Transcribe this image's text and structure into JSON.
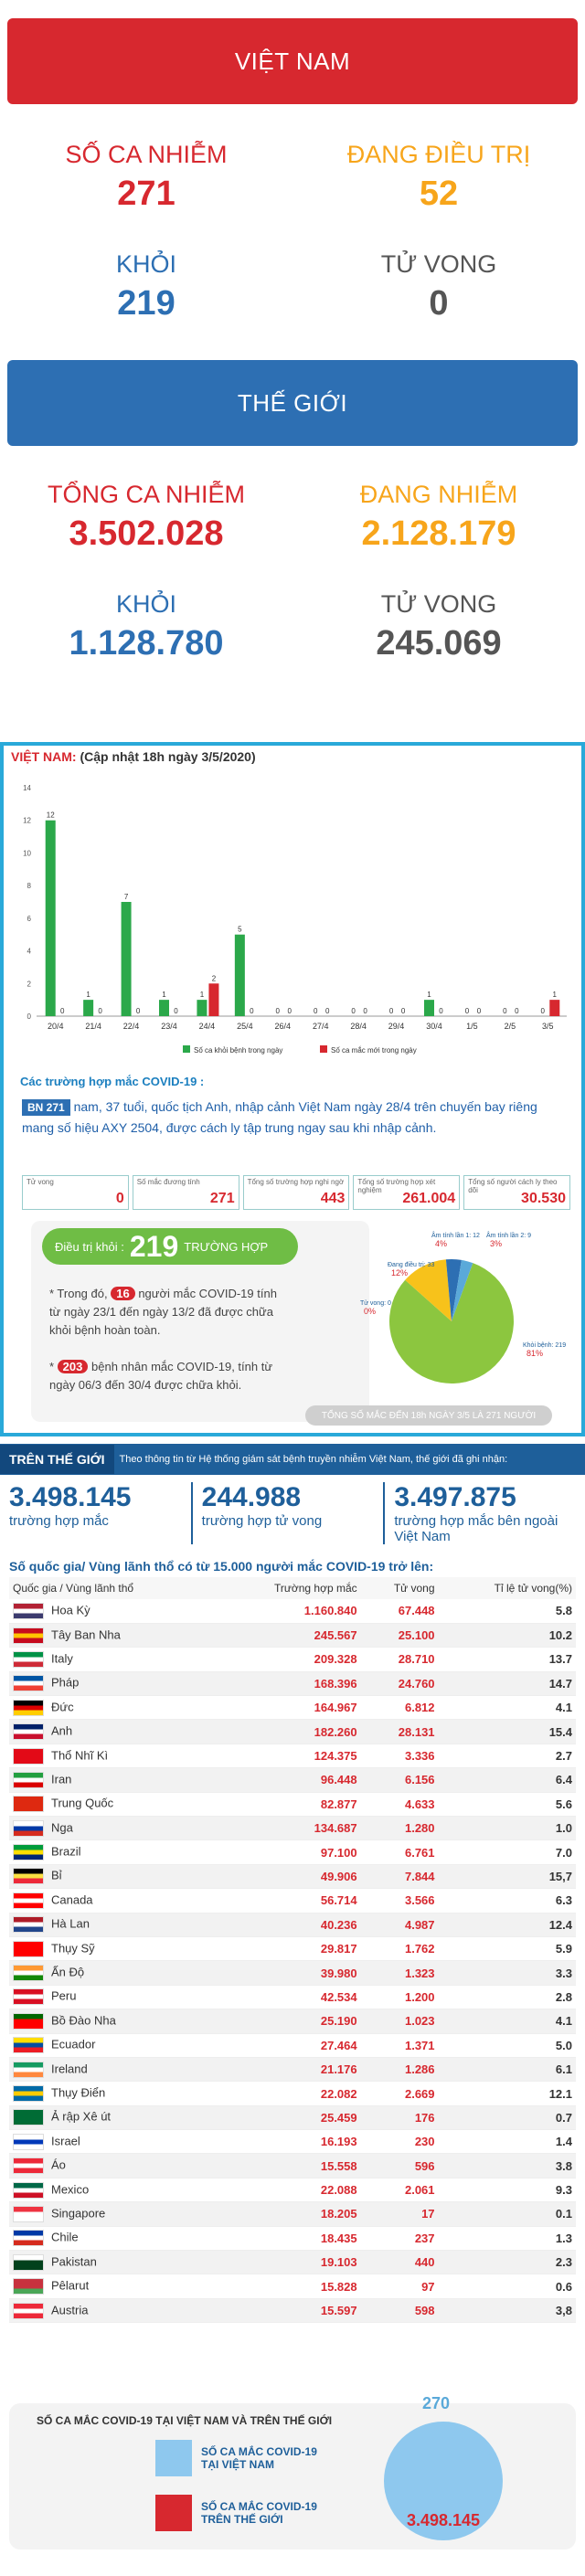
{
  "vietnam": {
    "banner": "VIỆT NAM",
    "infected_label": "SỐ CA NHIỄM",
    "infected": "271",
    "treating_label": "ĐANG ĐIỀU TRỊ",
    "treating": "52",
    "recovered_label": "KHỎI",
    "recovered": "219",
    "deaths_label": "TỬ VONG",
    "deaths": "0"
  },
  "world": {
    "banner": "THẾ GIỚI",
    "infected_label": "TỔNG CA NHIỄM",
    "infected": "3.502.028",
    "active_label": "ĐANG NHIỄM",
    "active": "2.128.179",
    "recovered_label": "KHỎI",
    "recovered": "1.128.780",
    "deaths_label": "TỬ VONG",
    "deaths": "245.069"
  },
  "vn_chart": {
    "title": "VIỆT NAM:",
    "subtitle": "(Cập nhật 18h ngày 3/5/2020)",
    "legend_recovered": "Số ca khỏi bệnh trong ngày",
    "legend_new": "Số ca mắc mới trong ngày"
  },
  "chart_data": {
    "type": "bar",
    "categories": [
      "20/4",
      "21/4",
      "22/4",
      "23/4",
      "24/4",
      "25/4",
      "26/4",
      "27/4",
      "28/4",
      "29/4",
      "30/4",
      "1/5",
      "2/5",
      "3/5"
    ],
    "series": [
      {
        "name": "Số ca khỏi bệnh trong ngày",
        "values": [
          12,
          1,
          7,
          1,
          1,
          5,
          0,
          0,
          0,
          0,
          1,
          0,
          0,
          0
        ],
        "color": "#2ba84a"
      },
      {
        "name": "Số ca mắc mới trong ngày",
        "values": [
          0,
          0,
          0,
          0,
          2,
          0,
          0,
          0,
          0,
          0,
          0,
          0,
          0,
          1
        ],
        "color": "#d7282f"
      }
    ],
    "ylim": [
      0,
      14
    ],
    "yticks": [
      "0",
      "2",
      "4",
      "6",
      "8",
      "10",
      "12",
      "14"
    ]
  },
  "case_info": {
    "title": "Các trường hợp mắc COVID-19 :",
    "bn_tag": "BN 271",
    "bn_text": "nam, 37 tuổi, quốc tịch Anh, nhập cảnh Việt Nam ngày 28/4 trên chuyến bay riêng mang số hiệu AXY 2504, được cách ly tập trung ngay sau khi nhập cảnh."
  },
  "mini_stats": [
    {
      "label": "Tử vong",
      "value": "0"
    },
    {
      "label": "Số mắc đương tính",
      "value": "271"
    },
    {
      "label": "Tổng số trường hợp nghi ngờ",
      "value": "443"
    },
    {
      "label": "Tổng số trường hợp xét nghiệm",
      "value": "261.004"
    },
    {
      "label": "Tổng số người cách ly theo dõi",
      "value": "30.530"
    }
  ],
  "recovery": {
    "pill_label": "Điều trị khỏi :",
    "pill_value": "219",
    "pill_unit": "TRƯỜNG HỢP",
    "text1_pre": "* Trong đó,",
    "text1_badge": "16",
    "text1_post": "người mắc COVID-19 tính từ ngày 23/1 đến ngày 13/2 đã được chữa khỏi bệnh hoàn toàn.",
    "text2_badge": "203",
    "text2_post": "bệnh nhân  mắc COVID-19, tính từ ngày 06/3 đến 30/4 được chữa khỏi.",
    "total_strip": "TỔNG SỐ MẮC ĐẾN 18h NGÀY 3/5 LÀ 271 NGƯỜI"
  },
  "pie": {
    "slices": [
      {
        "label": "Khỏi bệnh: 219",
        "pct": "81%",
        "value": 81,
        "color": "#8cc63f"
      },
      {
        "label": "Đang điều trị: 33",
        "pct": "12%",
        "value": 12,
        "color": "#f7c21b"
      },
      {
        "label": "Âm tính lần 1: 12",
        "pct": "4%",
        "value": 4,
        "color": "#2d6fb3"
      },
      {
        "label": "Âm tính lần 2: 9",
        "pct": "3%",
        "value": 3,
        "color": "#5aa9d9"
      },
      {
        "label": "Tử vong: 0",
        "pct": "0%",
        "value": 0,
        "color": "#d7282f"
      }
    ]
  },
  "world_table": {
    "tag": "TRÊN THẾ GIỚI",
    "desc": "Theo thông tin từ Hệ thống giám sát bệnh truyền nhiễm Việt Nam, thế giới đã ghi nhận:",
    "big": [
      {
        "value": "3.498.145",
        "caption": "trường hợp mắc"
      },
      {
        "value": "244.988",
        "caption": "trường hợp tử vong"
      },
      {
        "value": "3.497.875",
        "caption": "trường hợp mắc bên ngoài Việt Nam"
      }
    ],
    "title": "Số quốc gia/ Vùng lãnh thổ có từ 15.000 người  mắc COVID-19 trở lên:",
    "headers": [
      "Quốc gia / Vùng lãnh thổ",
      "Trường hợp mắc",
      "Tử vong",
      "Tỉ lệ tử vong(%)"
    ],
    "rows": [
      {
        "name": "Hoa Kỳ",
        "cases": "1.160.840",
        "deaths": "67.448",
        "rate": "5.8",
        "flag": [
          "#b22234",
          "#ffffff",
          "#3c3b6e"
        ]
      },
      {
        "name": "Tây Ban Nha",
        "cases": "245.567",
        "deaths": "25.100",
        "rate": "10.2",
        "flag": [
          "#c60b1e",
          "#ffc400",
          "#c60b1e"
        ]
      },
      {
        "name": "Italy",
        "cases": "209.328",
        "deaths": "28.710",
        "rate": "13.7",
        "flag": [
          "#009246",
          "#ffffff",
          "#ce2b37"
        ]
      },
      {
        "name": "Pháp",
        "cases": "168.396",
        "deaths": "24.760",
        "rate": "14.7",
        "flag": [
          "#0055a4",
          "#ffffff",
          "#ef4135"
        ]
      },
      {
        "name": "Đức",
        "cases": "164.967",
        "deaths": "6.812",
        "rate": "4.1",
        "flag": [
          "#000000",
          "#dd0000",
          "#ffce00"
        ]
      },
      {
        "name": "Anh",
        "cases": "182.260",
        "deaths": "28.131",
        "rate": "15.4",
        "flag": [
          "#012169",
          "#ffffff",
          "#c8102e"
        ]
      },
      {
        "name": "Thổ Nhĩ Kì",
        "cases": "124.375",
        "deaths": "3.336",
        "rate": "2.7",
        "flag": [
          "#e30a17",
          "#e30a17",
          "#e30a17"
        ]
      },
      {
        "name": "Iran",
        "cases": "96.448",
        "deaths": "6.156",
        "rate": "6.4",
        "flag": [
          "#239f40",
          "#ffffff",
          "#da0000"
        ]
      },
      {
        "name": "Trung Quốc",
        "cases": "82.877",
        "deaths": "4.633",
        "rate": "5.6",
        "flag": [
          "#de2910",
          "#de2910",
          "#de2910"
        ]
      },
      {
        "name": "Nga",
        "cases": "134.687",
        "deaths": "1.280",
        "rate": "1.0",
        "flag": [
          "#ffffff",
          "#0039a6",
          "#d52b1e"
        ]
      },
      {
        "name": "Brazil",
        "cases": "97.100",
        "deaths": "6.761",
        "rate": "7.0",
        "flag": [
          "#009c3b",
          "#ffdf00",
          "#002776"
        ]
      },
      {
        "name": "Bỉ",
        "cases": "49.906",
        "deaths": "7.844",
        "rate": "15,7",
        "flag": [
          "#000000",
          "#fae042",
          "#ed2939"
        ]
      },
      {
        "name": "Canada",
        "cases": "56.714",
        "deaths": "3.566",
        "rate": "6.3",
        "flag": [
          "#ff0000",
          "#ffffff",
          "#ff0000"
        ]
      },
      {
        "name": "Hà Lan",
        "cases": "40.236",
        "deaths": "4.987",
        "rate": "12.4",
        "flag": [
          "#ae1c28",
          "#ffffff",
          "#21468b"
        ]
      },
      {
        "name": "Thụy Sỹ",
        "cases": "29.817",
        "deaths": "1.762",
        "rate": "5.9",
        "flag": [
          "#ff0000",
          "#ff0000",
          "#ff0000"
        ]
      },
      {
        "name": "Ấn Độ",
        "cases": "39.980",
        "deaths": "1.323",
        "rate": "3.3",
        "flag": [
          "#ff9933",
          "#ffffff",
          "#138808"
        ]
      },
      {
        "name": "Peru",
        "cases": "42.534",
        "deaths": "1.200",
        "rate": "2.8",
        "flag": [
          "#d91023",
          "#ffffff",
          "#d91023"
        ]
      },
      {
        "name": "Bồ Đào Nha",
        "cases": "25.190",
        "deaths": "1.023",
        "rate": "4.1",
        "flag": [
          "#006600",
          "#ff0000",
          "#ff0000"
        ]
      },
      {
        "name": "Ecuador",
        "cases": "27.464",
        "deaths": "1.371",
        "rate": "5.0",
        "flag": [
          "#ffdd00",
          "#034ea2",
          "#ed1c24"
        ]
      },
      {
        "name": "Ireland",
        "cases": "21.176",
        "deaths": "1.286",
        "rate": "6.1",
        "flag": [
          "#169b62",
          "#ffffff",
          "#ff883e"
        ]
      },
      {
        "name": "Thụy Điển",
        "cases": "22.082",
        "deaths": "2.669",
        "rate": "12.1",
        "flag": [
          "#006aa7",
          "#fecc00",
          "#006aa7"
        ]
      },
      {
        "name": "Ả rập Xê út",
        "cases": "25.459",
        "deaths": "176",
        "rate": "0.7",
        "flag": [
          "#006c35",
          "#006c35",
          "#006c35"
        ]
      },
      {
        "name": "Israel",
        "cases": "16.193",
        "deaths": "230",
        "rate": "1.4",
        "flag": [
          "#ffffff",
          "#0038b8",
          "#ffffff"
        ]
      },
      {
        "name": "Áo",
        "cases": "15.558",
        "deaths": "596",
        "rate": "3.8",
        "flag": [
          "#ed2939",
          "#ffffff",
          "#ed2939"
        ]
      },
      {
        "name": "Mexico",
        "cases": "22.088",
        "deaths": "2.061",
        "rate": "9.3",
        "flag": [
          "#006847",
          "#ffffff",
          "#ce1126"
        ]
      },
      {
        "name": "Singapore",
        "cases": "18.205",
        "deaths": "17",
        "rate": "0.1",
        "flag": [
          "#ef3340",
          "#ffffff",
          "#ffffff"
        ]
      },
      {
        "name": "Chile",
        "cases": "18.435",
        "deaths": "237",
        "rate": "1.3",
        "flag": [
          "#0039a6",
          "#ffffff",
          "#d52b1e"
        ]
      },
      {
        "name": "Pakistan",
        "cases": "19.103",
        "deaths": "440",
        "rate": "2.3",
        "flag": [
          "#ffffff",
          "#01411c",
          "#01411c"
        ]
      },
      {
        "name": "Pêlarut",
        "cases": "15.828",
        "deaths": "97",
        "rate": "0.6",
        "flag": [
          "#c8313e",
          "#c8313e",
          "#4aa657"
        ]
      },
      {
        "name": "Austria",
        "cases": "15.597",
        "deaths": "598",
        "rate": "3,8",
        "flag": [
          "#ed2939",
          "#ffffff",
          "#ed2939"
        ]
      }
    ]
  },
  "comparison": {
    "title": "SỐ CA MẮC COVID-19 TẠI VIỆT NAM VÀ TRÊN THẾ GIỚI",
    "vn_label": "SỐ CA MẮC COVID-19 TẠI VIỆT NAM",
    "world_label": "SỐ CA MẮC COVID-19 TRÊN THẾ GIỚI",
    "vn_value": "270",
    "world_value": "3.498.145"
  }
}
